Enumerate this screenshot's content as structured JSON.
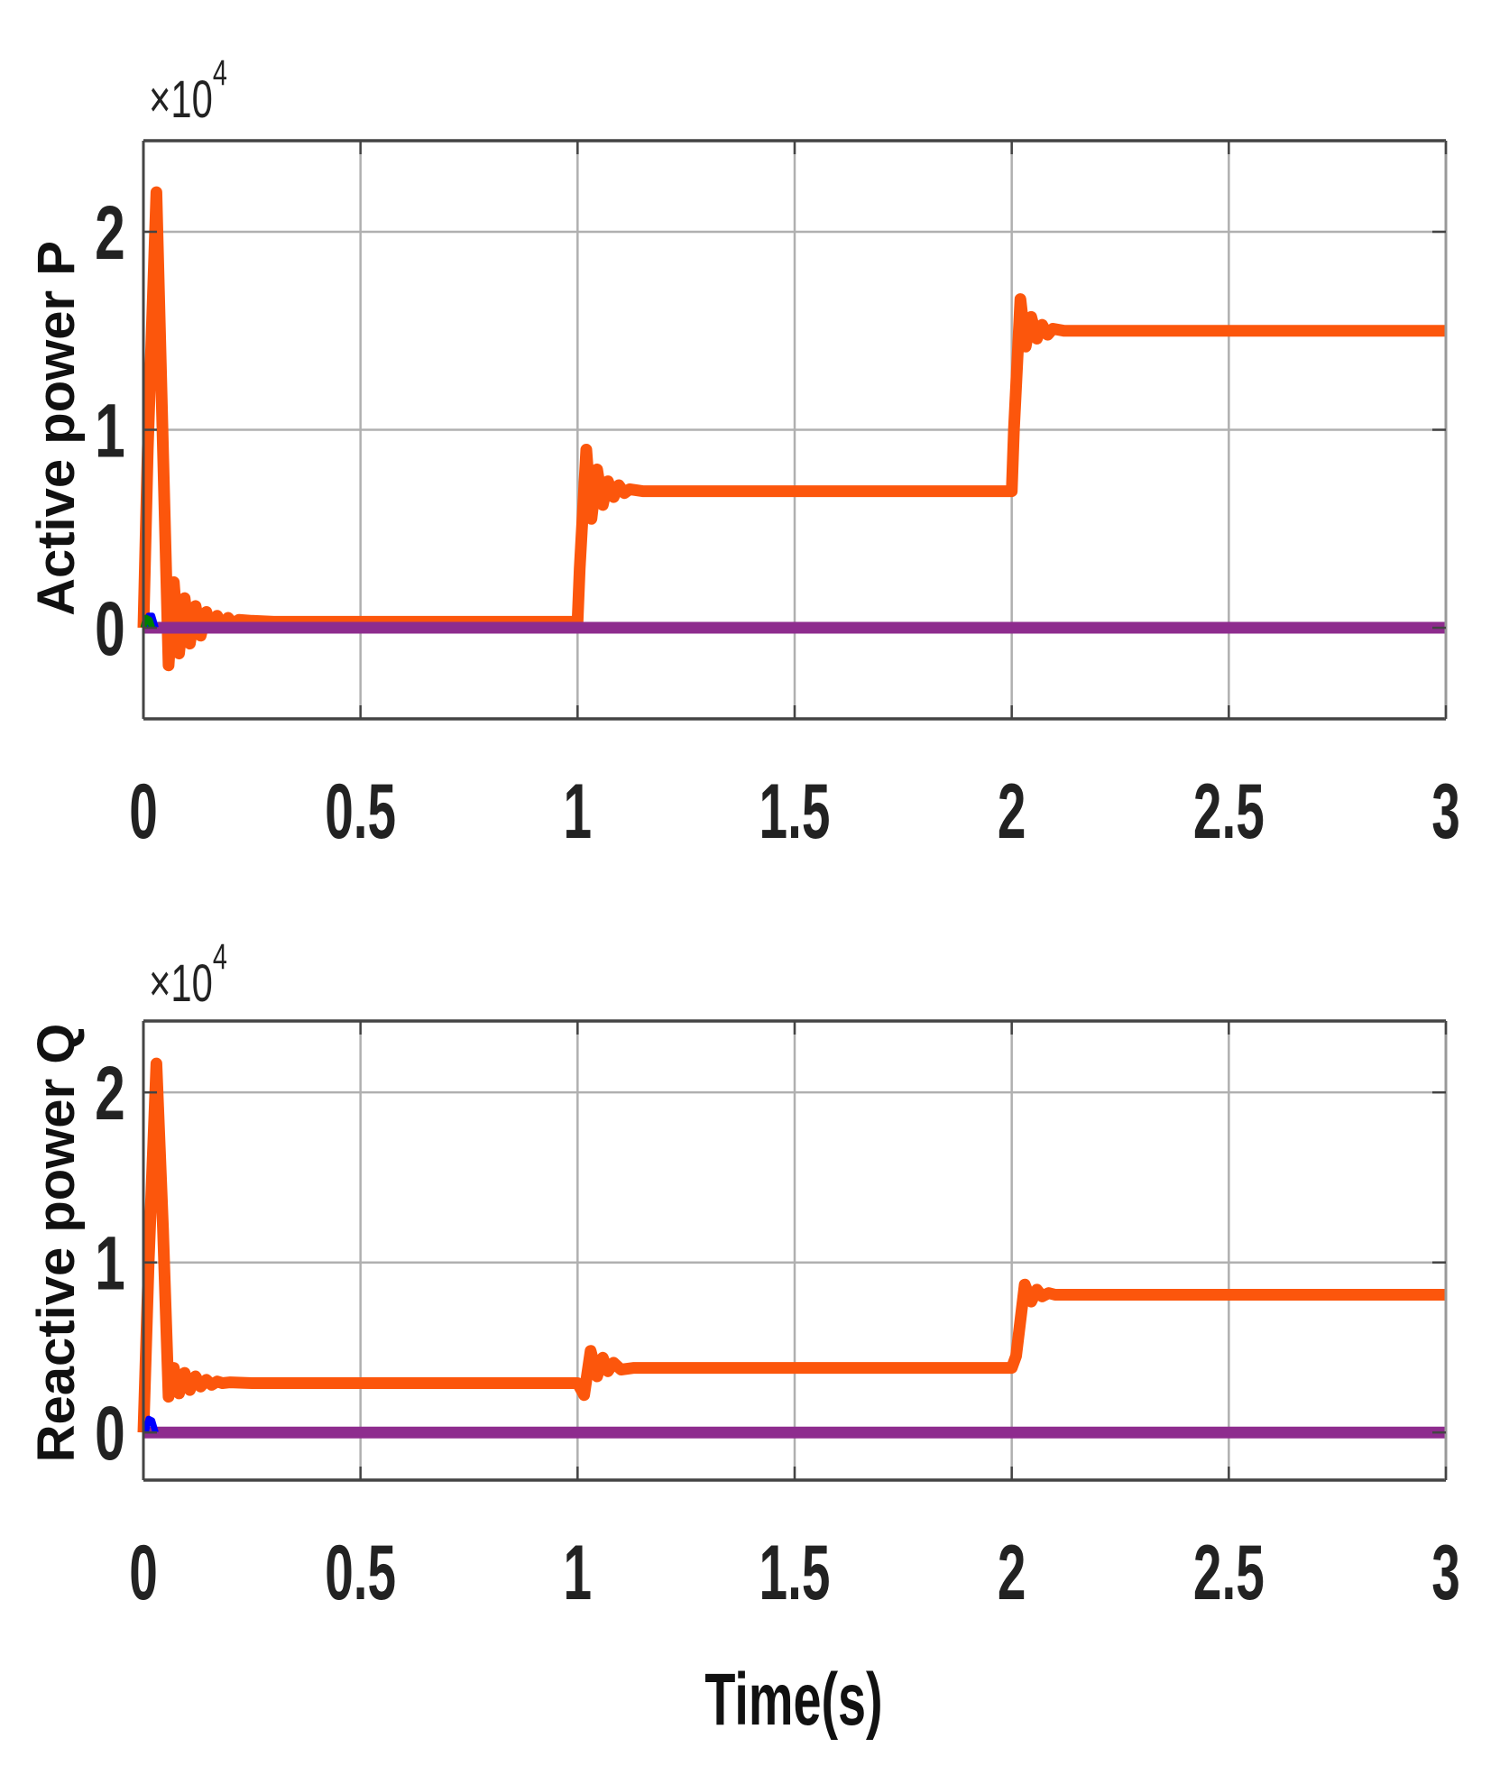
{
  "figure": {
    "xlabel": "Time(s)",
    "x_ticks": [
      "0",
      "0.5",
      "1",
      "1.5",
      "2",
      "2.5",
      "3"
    ],
    "x_tick_values": [
      0,
      0.5,
      1,
      1.5,
      2,
      2.5,
      3
    ],
    "colors": {
      "series_main": "#FC560C",
      "series_zero": "#8E2C8E",
      "marker_blue": "#0000FF",
      "marker_green": "#008000",
      "grid": "#B0B0B0",
      "axis_dark": "#444444",
      "axis_light": "#999999"
    }
  },
  "chart_data": [
    {
      "type": "line",
      "title": "",
      "ylabel": "Active power P",
      "xlabel": "",
      "y_multiplier": "×10^4",
      "y_exponent_base": "×10",
      "y_exponent": "4",
      "xlim": [
        0,
        3
      ],
      "ylim": [
        -0.46,
        2.46
      ],
      "x_ticks": [
        0,
        0.5,
        1,
        1.5,
        2,
        2.5,
        3
      ],
      "y_ticks": [
        0,
        1,
        2
      ],
      "y_tick_labels": [
        "0",
        "1",
        "2"
      ],
      "grid": true,
      "legend": null,
      "units": "x10^4",
      "series": [
        {
          "name": "P (orange)",
          "color": "#FC560C",
          "x": [
            0,
            0.01,
            0.03,
            0.045,
            0.058,
            0.07,
            0.082,
            0.095,
            0.107,
            0.12,
            0.132,
            0.145,
            0.157,
            0.17,
            0.182,
            0.195,
            0.207,
            0.22,
            0.25,
            0.3,
            1.0,
            1.005,
            1.02,
            1.032,
            1.045,
            1.058,
            1.07,
            1.083,
            1.095,
            1.108,
            1.12,
            1.15,
            1.2,
            2.0,
            2.005,
            2.02,
            2.032,
            2.045,
            2.058,
            2.07,
            2.083,
            2.095,
            2.12,
            2.2,
            3.0
          ],
          "y": [
            0.0,
            0.9,
            2.2,
            0.9,
            -0.19,
            0.23,
            -0.13,
            0.15,
            -0.08,
            0.11,
            -0.04,
            0.08,
            0.0,
            0.06,
            0.01,
            0.05,
            0.02,
            0.04,
            0.035,
            0.03,
            0.03,
            0.3,
            0.9,
            0.55,
            0.8,
            0.62,
            0.74,
            0.66,
            0.72,
            0.68,
            0.7,
            0.69,
            0.69,
            0.69,
            1.0,
            1.66,
            1.42,
            1.57,
            1.46,
            1.53,
            1.48,
            1.51,
            1.5,
            1.5,
            1.5
          ]
        },
        {
          "name": "P (purple)",
          "color": "#8E2C8E",
          "x": [
            0,
            3
          ],
          "y": [
            0,
            0
          ]
        },
        {
          "name": "P (blue)",
          "color": "#0000FF",
          "x": [
            0.005,
            0.012,
            0.02,
            0.028
          ],
          "y": [
            0.0,
            0.06,
            0.06,
            0.0
          ]
        },
        {
          "name": "P (green)",
          "color": "#008000",
          "x": [
            0.0,
            0.006,
            0.014,
            0.02
          ],
          "y": [
            0.0,
            0.05,
            0.04,
            0.0
          ]
        }
      ]
    },
    {
      "type": "line",
      "title": "",
      "ylabel": "Reactive power Q",
      "xlabel": "Time(s)",
      "y_multiplier": "×10^4",
      "y_exponent_base": "×10",
      "y_exponent": "4",
      "xlim": [
        0,
        3
      ],
      "ylim": [
        -0.28,
        2.42
      ],
      "x_ticks": [
        0,
        0.5,
        1,
        1.5,
        2,
        2.5,
        3
      ],
      "y_ticks": [
        0,
        1,
        2
      ],
      "y_tick_labels": [
        "0",
        "1",
        "2"
      ],
      "grid": true,
      "legend": null,
      "units": "x10^4",
      "series": [
        {
          "name": "Q (orange)",
          "color": "#FC560C",
          "x": [
            0,
            0.012,
            0.03,
            0.045,
            0.058,
            0.07,
            0.082,
            0.095,
            0.107,
            0.12,
            0.132,
            0.145,
            0.157,
            0.17,
            0.182,
            0.2,
            0.25,
            0.3,
            1.0,
            1.015,
            1.03,
            1.045,
            1.058,
            1.07,
            1.083,
            1.1,
            1.13,
            1.2,
            2.0,
            2.01,
            2.03,
            2.045,
            2.058,
            2.07,
            2.085,
            2.1,
            2.2,
            3.0
          ],
          "y": [
            0.0,
            1.0,
            2.17,
            1.2,
            0.21,
            0.38,
            0.23,
            0.35,
            0.25,
            0.33,
            0.27,
            0.31,
            0.28,
            0.3,
            0.29,
            0.295,
            0.29,
            0.29,
            0.29,
            0.22,
            0.48,
            0.33,
            0.44,
            0.36,
            0.41,
            0.37,
            0.38,
            0.38,
            0.38,
            0.45,
            0.87,
            0.77,
            0.84,
            0.8,
            0.82,
            0.81,
            0.81,
            0.81
          ]
        },
        {
          "name": "Q (purple)",
          "color": "#8E2C8E",
          "x": [
            0,
            3
          ],
          "y": [
            0,
            0
          ]
        },
        {
          "name": "Q (blue)",
          "color": "#0000FF",
          "x": [
            0.005,
            0.012,
            0.02,
            0.028
          ],
          "y": [
            0.0,
            0.08,
            0.07,
            0.0
          ]
        }
      ]
    }
  ]
}
